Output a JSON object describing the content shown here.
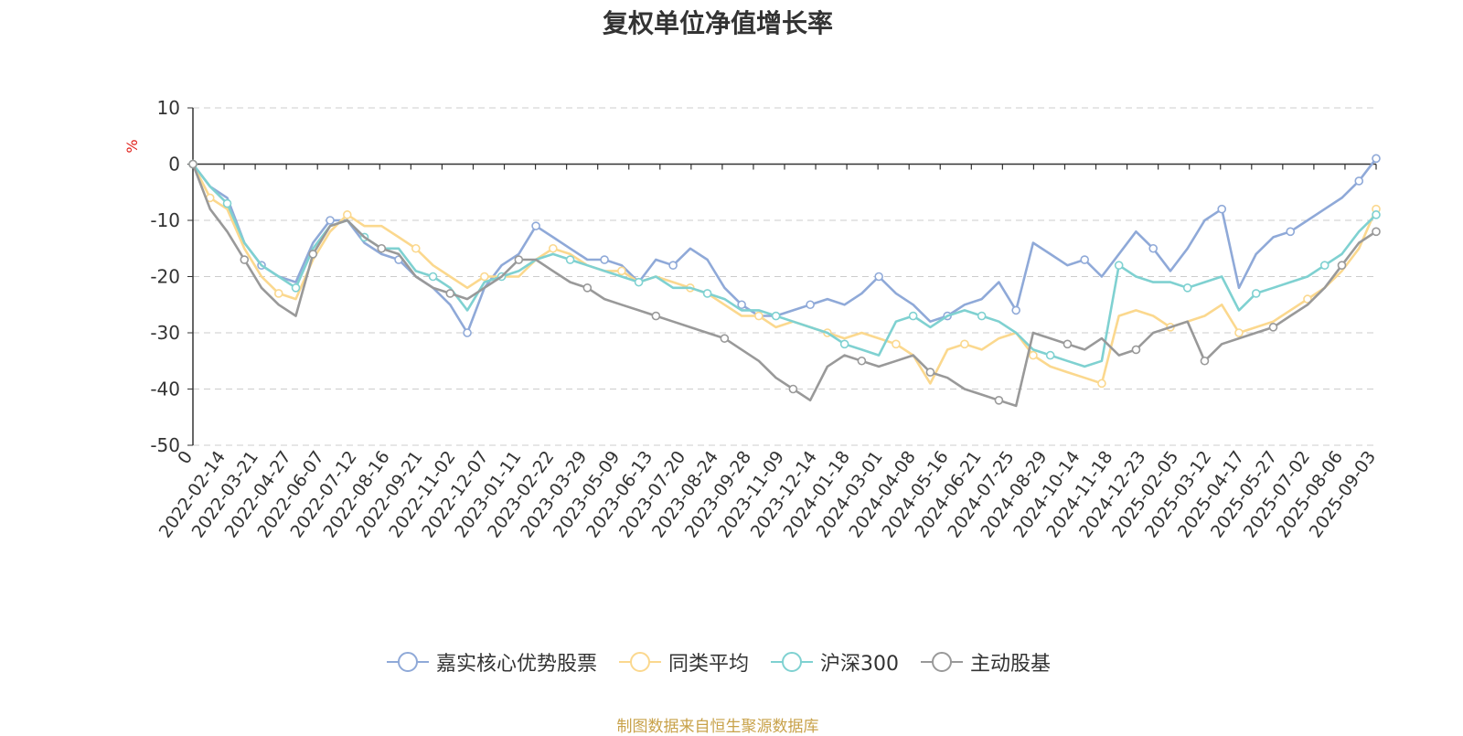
{
  "chart_data": {
    "type": "line",
    "title": "复权单位净值增长率",
    "ylabel": "%",
    "ylim": [
      -50,
      10
    ],
    "yticks": [
      10,
      0,
      -10,
      -20,
      -30,
      -40,
      -50
    ],
    "x_first_label": "0",
    "x_tick_labels": [
      "2022-02-14",
      "2022-03-21",
      "2022-04-27",
      "2022-06-07",
      "2022-07-12",
      "2022-08-16",
      "2022-09-21",
      "2022-11-02",
      "2022-12-07",
      "2023-01-11",
      "2023-02-22",
      "2023-03-29",
      "2023-05-09",
      "2023-06-13",
      "2023-07-20",
      "2023-08-24",
      "2023-09-28",
      "2023-11-09",
      "2023-12-14",
      "2024-01-18",
      "2024-03-01",
      "2024-04-08",
      "2024-05-16",
      "2024-06-21",
      "2024-07-25",
      "2024-08-29",
      "2024-10-14",
      "2024-11-18",
      "2024-12-23",
      "2025-02-05",
      "2025-03-12",
      "2025-04-17",
      "2025-05-27",
      "2025-07-02",
      "2025-08-06",
      "2025-09-03"
    ],
    "grid": true,
    "legend_position": "bottom",
    "series": [
      {
        "name": "嘉实核心优势股票",
        "color": "#8fa9d8",
        "values": [
          0,
          -4,
          -6,
          -14,
          -18,
          -20,
          -21,
          -14,
          -10,
          -10,
          -14,
          -16,
          -17,
          -20,
          -22,
          -25,
          -30,
          -22,
          -18,
          -16,
          -11,
          -13,
          -15,
          -17,
          -17,
          -18,
          -21,
          -17,
          -18,
          -15,
          -17,
          -22,
          -25,
          -27,
          -27,
          -26,
          -25,
          -24,
          -25,
          -23,
          -20,
          -23,
          -25,
          -28,
          -27,
          -25,
          -24,
          -21,
          -26,
          -14,
          -16,
          -18,
          -17,
          -20,
          -16,
          -12,
          -15,
          -19,
          -15,
          -10,
          -8,
          -22,
          -16,
          -13,
          -12,
          -10,
          -8,
          -6,
          -3,
          1
        ]
      },
      {
        "name": "同类平均",
        "color": "#fbd88e",
        "values": [
          0,
          -6,
          -8,
          -15,
          -20,
          -23,
          -24,
          -17,
          -12,
          -9,
          -11,
          -11,
          -13,
          -15,
          -18,
          -20,
          -22,
          -20,
          -20,
          -20,
          -17,
          -15,
          -16,
          -18,
          -19,
          -19,
          -21,
          -20,
          -21,
          -22,
          -23,
          -25,
          -27,
          -27,
          -29,
          -28,
          -29,
          -30,
          -31,
          -30,
          -31,
          -32,
          -34,
          -39,
          -33,
          -32,
          -33,
          -31,
          -30,
          -34,
          -36,
          -37,
          -38,
          -39,
          -27,
          -26,
          -27,
          -29,
          -28,
          -27,
          -25,
          -30,
          -29,
          -28,
          -26,
          -24,
          -22,
          -19,
          -15,
          -8
        ]
      },
      {
        "name": "沪深300",
        "color": "#7fd1d1",
        "values": [
          0,
          -4,
          -7,
          -14,
          -18,
          -20,
          -22,
          -15,
          -11,
          -10,
          -13,
          -15,
          -15,
          -19,
          -20,
          -22,
          -26,
          -21,
          -20,
          -19,
          -17,
          -16,
          -17,
          -18,
          -19,
          -20,
          -21,
          -20,
          -22,
          -22,
          -23,
          -24,
          -26,
          -26,
          -27,
          -28,
          -29,
          -30,
          -32,
          -33,
          -34,
          -28,
          -27,
          -29,
          -27,
          -26,
          -27,
          -28,
          -30,
          -33,
          -34,
          -35,
          -36,
          -35,
          -18,
          -20,
          -21,
          -21,
          -22,
          -21,
          -20,
          -26,
          -23,
          -22,
          -21,
          -20,
          -18,
          -16,
          -12,
          -9
        ]
      },
      {
        "name": "主动股基",
        "color": "#999999",
        "values": [
          0,
          -8,
          -12,
          -17,
          -22,
          -25,
          -27,
          -16,
          -11,
          -10,
          -13,
          -15,
          -16,
          -20,
          -22,
          -23,
          -24,
          -22,
          -20,
          -17,
          -17,
          -19,
          -21,
          -22,
          -24,
          -25,
          -26,
          -27,
          -28,
          -29,
          -30,
          -31,
          -33,
          -35,
          -38,
          -40,
          -42,
          -36,
          -34,
          -35,
          -36,
          -35,
          -34,
          -37,
          -38,
          -40,
          -41,
          -42,
          -43,
          -30,
          -31,
          -32,
          -33,
          -31,
          -34,
          -33,
          -30,
          -29,
          -28,
          -35,
          -32,
          -31,
          -30,
          -29,
          -27,
          -25,
          -22,
          -18,
          -14,
          -12
        ]
      }
    ]
  },
  "source_text": "制图数据来自恒生聚源数据库"
}
